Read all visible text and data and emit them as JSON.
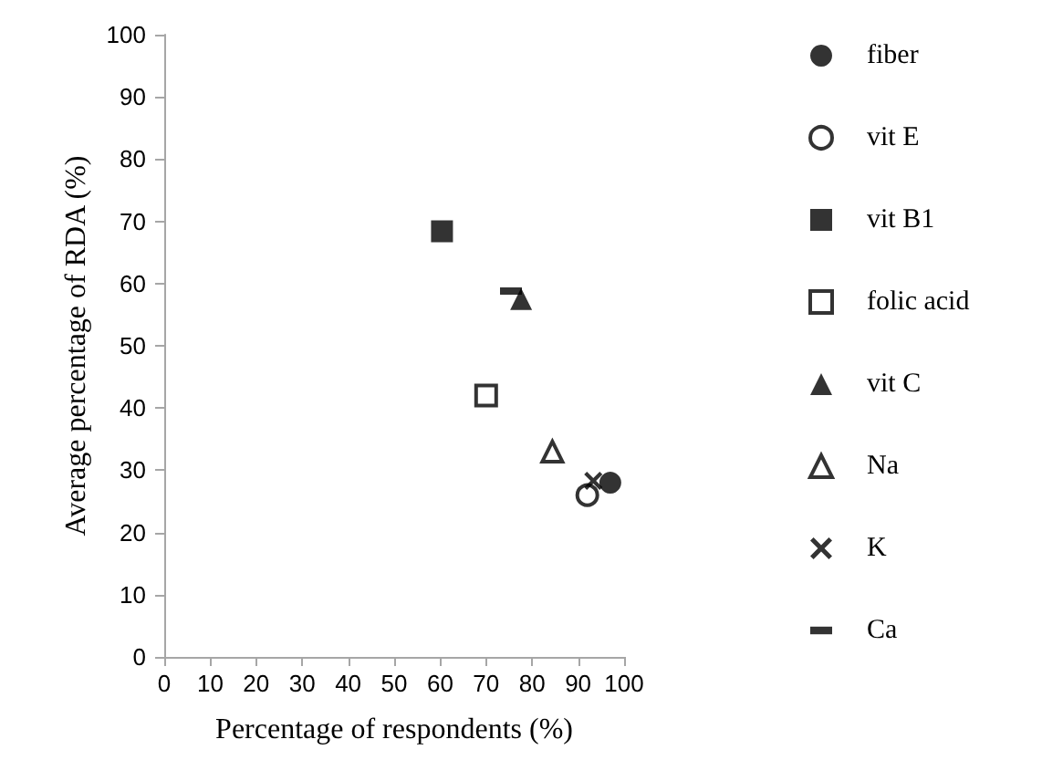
{
  "chart_data": {
    "type": "scatter",
    "xlabel": "Percentage of respondents (%)",
    "ylabel": "Average percentage of RDA (%)",
    "xlim": [
      0,
      100
    ],
    "xticks": [
      0,
      10,
      20,
      30,
      40,
      50,
      60,
      70,
      80,
      90,
      100
    ],
    "ylim": [
      0,
      100
    ],
    "yticks": [
      0,
      10,
      20,
      30,
      40,
      50,
      60,
      70,
      80,
      90,
      100
    ],
    "grid": false,
    "legend": "right",
    "series": [
      {
        "name": "fiber",
        "color": "#000000",
        "marker": "circle",
        "x": [
          97
        ],
        "values": [
          28
        ]
      },
      {
        "name": "vit E",
        "color": "#ffffff",
        "marker": "circle",
        "x": [
          92
        ],
        "values": [
          26
        ]
      },
      {
        "name": "vit B1",
        "color": "#000000",
        "marker": "square",
        "x": [
          60.4
        ],
        "values": [
          68.4
        ]
      },
      {
        "name": "folic acid",
        "color": "#ffffff",
        "marker": "square",
        "x": [
          70
        ],
        "values": [
          42
        ]
      },
      {
        "name": "vit C",
        "color": "#000000",
        "marker": "triangle",
        "x": [
          77.6
        ],
        "values": [
          57.5
        ]
      },
      {
        "name": "Na",
        "color": "#ffffff",
        "marker": "triangle",
        "x": [
          84.4
        ],
        "values": [
          33
        ]
      },
      {
        "name": "K",
        "color": "#000000",
        "marker": "cross",
        "x": [
          93.3
        ],
        "values": [
          28.3
        ]
      },
      {
        "name": "Ca",
        "color": "#000000",
        "x": [
          75.4
        ],
        "values": [
          58.8
        ]
      }
    ]
  }
}
